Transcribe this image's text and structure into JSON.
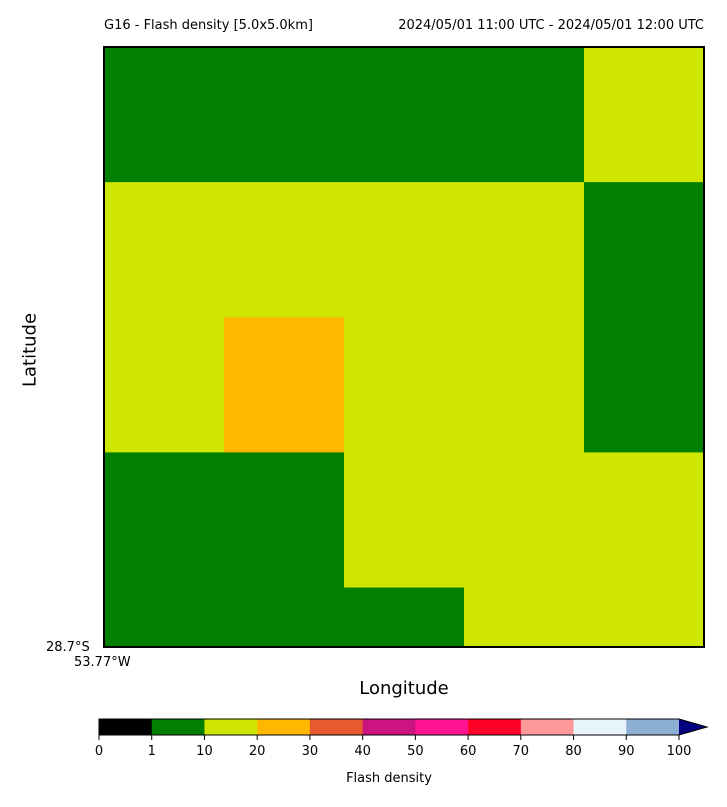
{
  "chart_data": {
    "type": "heatmap",
    "title_left": "G16 - Flash density [5.0x5.0km]",
    "title_right": "2024/05/01 11:00 UTC - 2024/05/01 12:00 UTC",
    "xlabel": "Longitude",
    "ylabel": "Latitude",
    "corner_lat": "28.7°S",
    "corner_lon": "53.77°W",
    "grid_columns": 5,
    "grid_rows_top_to_bottom": [
      [
        5,
        5,
        5,
        5,
        15
      ],
      [
        15,
        15,
        15,
        15,
        5
      ],
      [
        15,
        25,
        15,
        15,
        5
      ],
      [
        5,
        5,
        15,
        15,
        15
      ],
      [
        5,
        5,
        5,
        15,
        15
      ]
    ],
    "row_heights_relative": [
      1,
      1,
      1,
      1,
      0.44
    ],
    "colorbar": {
      "label": "Flash density",
      "ticks": [
        "0",
        "1",
        "10",
        "20",
        "30",
        "40",
        "50",
        "60",
        "70",
        "80",
        "90",
        "100"
      ],
      "boundaries": [
        0,
        1,
        10,
        20,
        30,
        40,
        50,
        60,
        70,
        80,
        90,
        100
      ],
      "colors": [
        "#000000",
        "#007f00",
        "#cfe600",
        "#ffb700",
        "#e65a32",
        "#cc1480",
        "#ff1493",
        "#ff0028",
        "#ff9999",
        "#e6f5fa",
        "#8cafd2"
      ],
      "extend_color": "#000080",
      "extend": "max"
    }
  }
}
